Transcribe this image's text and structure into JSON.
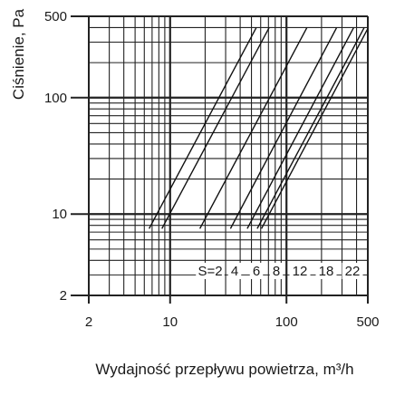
{
  "chart_data": {
    "type": "line",
    "title": "",
    "xlabel": "Wydajność przepływu powietrza, m³/h",
    "ylabel": "Ciśnienie, Pa",
    "x_scale": "log",
    "y_scale": "log",
    "xlim": [
      2,
      500
    ],
    "ylim": [
      2,
      500
    ],
    "x_ticks": [
      2,
      10,
      100,
      500
    ],
    "x_tick_labels": [
      "2",
      "10",
      "100",
      "500"
    ],
    "y_ticks": [
      2,
      10,
      100,
      500
    ],
    "y_tick_labels": [
      "2",
      "10",
      "100",
      "500"
    ],
    "grid": true,
    "curve_label_prefix": "S=",
    "series": [
      {
        "name": "2",
        "x": [
          6.6,
          55
        ],
        "y": [
          7.5,
          400
        ]
      },
      {
        "name": "4",
        "x": [
          8.5,
          71
        ],
        "y": [
          7.5,
          400
        ]
      },
      {
        "name": "6",
        "x": [
          18,
          150
        ],
        "y": [
          7.5,
          400
        ]
      },
      {
        "name": "8",
        "x": [
          33,
          270
        ],
        "y": [
          7.5,
          400
        ]
      },
      {
        "name": "12",
        "x": [
          46,
          378
        ],
        "y": [
          7.5,
          400
        ]
      },
      {
        "name": "18",
        "x": [
          56,
          465
        ],
        "y": [
          7.5,
          400
        ]
      },
      {
        "name": "22",
        "x": [
          61,
          505
        ],
        "y": [
          7.5,
          400
        ]
      }
    ]
  }
}
